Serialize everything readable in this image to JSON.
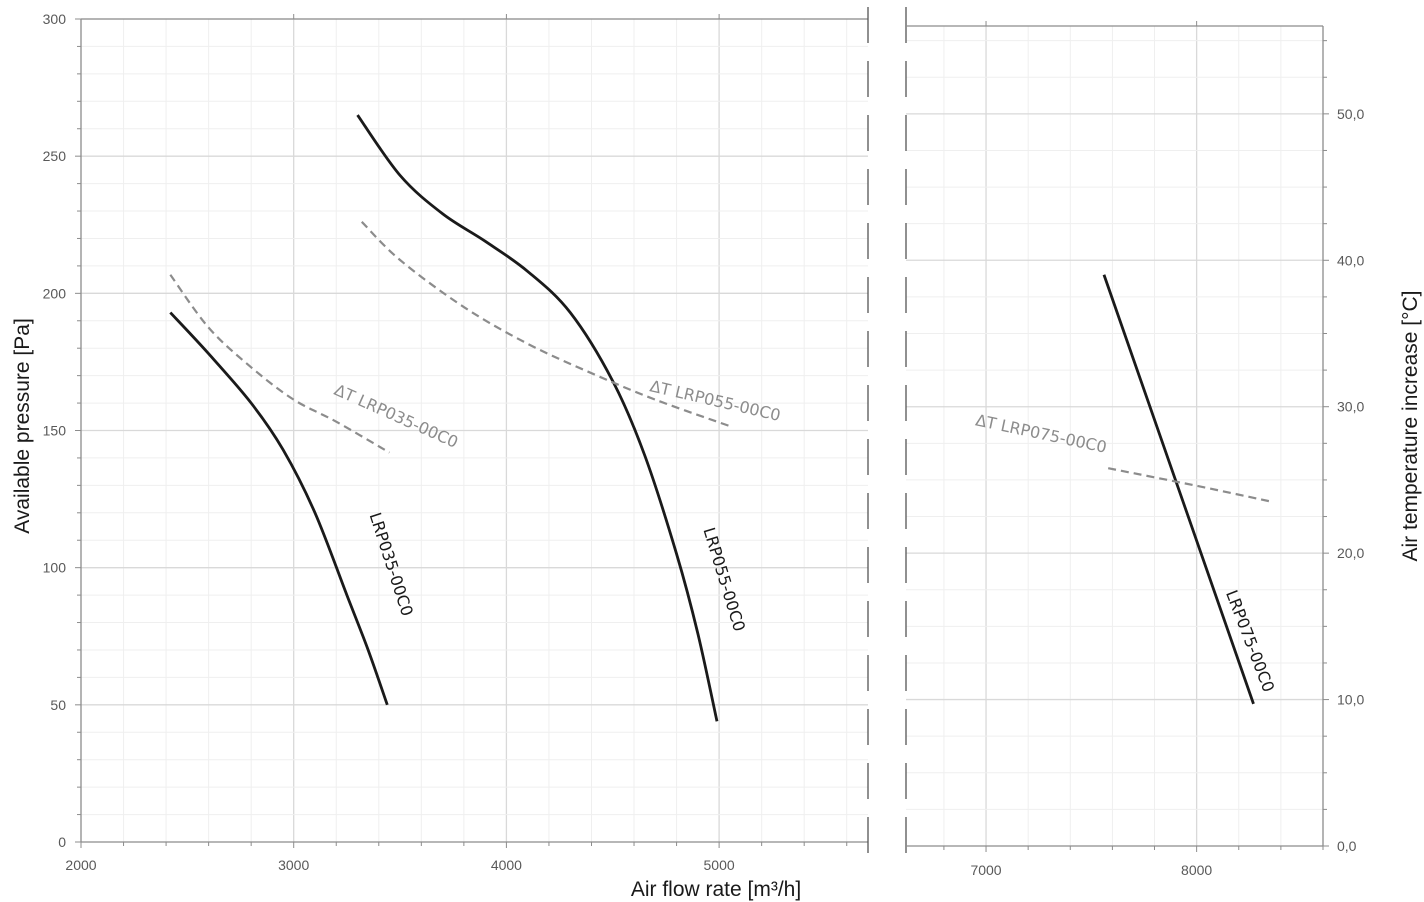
{
  "chart_data": {
    "type": "line",
    "xlabel": "Air flow rate [m³/h]",
    "ylabel": "Available pressure [Pa]",
    "y2label": "Air temperature increase [°C]",
    "xlim_left": [
      2000,
      5700
    ],
    "xlim_right": [
      6620,
      8600
    ],
    "ylim": [
      0,
      300
    ],
    "y2lim": [
      0,
      56
    ],
    "x_ticks_left": [
      "2000",
      "3000",
      "4000",
      "5000"
    ],
    "x_ticks_right": [
      "7000",
      "8000"
    ],
    "y_ticks": [
      "0",
      "50",
      "100",
      "150",
      "200",
      "250",
      "300"
    ],
    "y2_ticks": [
      "0,0",
      "10,0",
      "20,0",
      "30,0",
      "40,0",
      "50,0"
    ],
    "grid": true,
    "axis_break": true,
    "series": [
      {
        "name": "LRP035-00C0",
        "axis": "pressure",
        "style": "solid",
        "color": "#1a1a1a",
        "x": [
          2420,
          2600,
          2800,
          2950,
          3100,
          3250,
          3350,
          3440
        ],
        "y": [
          193,
          178,
          160,
          143,
          120,
          90,
          70,
          50
        ]
      },
      {
        "name": "LRP055-00C0",
        "axis": "pressure",
        "style": "solid",
        "color": "#1a1a1a",
        "x": [
          3300,
          3500,
          3700,
          3900,
          4100,
          4300,
          4500,
          4650,
          4800,
          4900,
          4990
        ],
        "y": [
          265,
          243,
          229,
          219,
          208,
          193,
          168,
          141,
          105,
          76,
          44
        ]
      },
      {
        "name": "LRP075-00C0",
        "axis": "pressure",
        "style": "solid",
        "color": "#1a1a1a",
        "x": [
          7560,
          8270
        ],
        "y": [
          209,
          52
        ]
      },
      {
        "name": "ΔT LRP035-00C0",
        "axis": "temperature",
        "style": "dashed",
        "color": "#8c8c8c",
        "x": [
          2420,
          2600,
          2800,
          3000,
          3200,
          3450
        ],
        "y": [
          38.6,
          35.0,
          32.3,
          30.1,
          28.6,
          26.5
        ]
      },
      {
        "name": "ΔT LRP055-00C0",
        "axis": "temperature",
        "style": "dashed",
        "color": "#8c8c8c",
        "x": [
          3320,
          3500,
          3800,
          4100,
          4400,
          4700,
          5050
        ],
        "y": [
          42.2,
          39.6,
          36.4,
          33.9,
          31.9,
          30.1,
          28.3
        ]
      },
      {
        "name": "ΔT LRP075-00C0",
        "axis": "temperature",
        "style": "dashed",
        "color": "#8c8c8c",
        "x": [
          7580,
          8000,
          8360
        ],
        "y": [
          25.8,
          24.6,
          23.5
        ]
      }
    ],
    "curve_labels": [
      {
        "text": "LRP035-00C0"
      },
      {
        "text": "LRP055-00C0"
      },
      {
        "text": "LRP075-00C0"
      },
      {
        "text": "ΔT LRP035-00C0"
      },
      {
        "text": "ΔT LRP055-00C0"
      },
      {
        "text": "ΔT LRP075-00C0"
      }
    ]
  }
}
